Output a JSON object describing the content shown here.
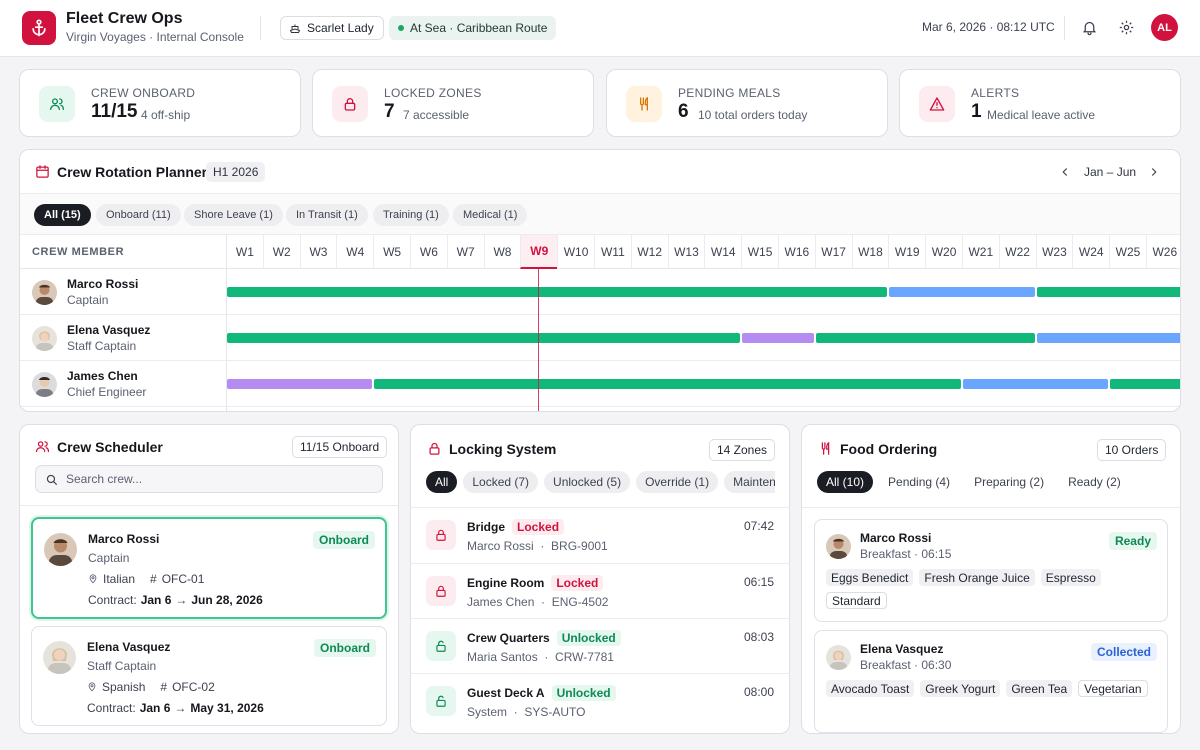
{
  "header": {
    "app_title": "Fleet Crew Ops",
    "app_subtitle": "Virgin Voyages · Internal Console",
    "ship": "Scarlet Lady",
    "status": "At Sea · Caribbean Route",
    "datetime": "Mar 6, 2026 · 08:12 UTC",
    "user_initials": "AL",
    "brand_color": "#d1123f"
  },
  "stats": [
    {
      "label": "Crew Onboard",
      "value": "11/15",
      "sub": "4 off-ship"
    },
    {
      "label": "Locked Zones",
      "value": "7",
      "sub": "7 accessible"
    },
    {
      "label": "Pending Meals",
      "value": "6",
      "sub": "10 total orders today"
    },
    {
      "label": "Alerts",
      "value": "1",
      "sub": "Medical leave active"
    }
  ],
  "planner": {
    "title": "Crew Rotation Planner",
    "period_badge": "H1 2026",
    "range": "Jan – Jun",
    "filters": [
      "All (15)",
      "Onboard (11)",
      "Shore Leave (1)",
      "In Transit (1)",
      "Training (1)",
      "Medical (1)"
    ],
    "column_header": "CREW MEMBER",
    "weeks": [
      "W1",
      "W2",
      "W3",
      "W4",
      "W5",
      "W6",
      "W7",
      "W8",
      "W9",
      "W10",
      "W11",
      "W12",
      "W13",
      "W14",
      "W15",
      "W16",
      "W17",
      "W18",
      "W19",
      "W20",
      "W21",
      "W22",
      "W23",
      "W24",
      "W25",
      "W26"
    ],
    "current_week": "W9",
    "rows": [
      {
        "name": "Marco Rossi",
        "role": "Captain",
        "segments": [
          {
            "type": "onboard",
            "start": 0,
            "end": 18
          },
          {
            "type": "shore",
            "start": 18,
            "end": 22
          },
          {
            "type": "onboard",
            "start": 22,
            "end": 26
          }
        ]
      },
      {
        "name": "Elena Vasquez",
        "role": "Staff Captain",
        "segments": [
          {
            "type": "onboard",
            "start": 0,
            "end": 14
          },
          {
            "type": "training",
            "start": 14,
            "end": 16
          },
          {
            "type": "onboard",
            "start": 16,
            "end": 22
          },
          {
            "type": "shore",
            "start": 22,
            "end": 26
          }
        ]
      },
      {
        "name": "James Chen",
        "role": "Chief Engineer",
        "segments": [
          {
            "type": "training",
            "start": 0,
            "end": 4
          },
          {
            "type": "onboard",
            "start": 4,
            "end": 20
          },
          {
            "type": "shore",
            "start": 20,
            "end": 24
          },
          {
            "type": "onboard",
            "start": 24,
            "end": 26
          }
        ]
      }
    ]
  },
  "scheduler": {
    "title": "Crew Scheduler",
    "badge": "11/15 Onboard",
    "search_placeholder": "Search crew...",
    "cards": [
      {
        "name": "Marco Rossi",
        "role": "Captain",
        "status": "Onboard",
        "language": "Italian",
        "office": "OFC-01",
        "contract_label": "Contract:",
        "contract_start": "Jan 6",
        "contract_end": "Jun 28, 2026"
      },
      {
        "name": "Elena Vasquez",
        "role": "Staff Captain",
        "status": "Onboard",
        "language": "Spanish",
        "office": "OFC-02",
        "contract_label": "Contract:",
        "contract_start": "Jan 6",
        "contract_end": "May 31, 2026"
      }
    ]
  },
  "locking": {
    "title": "Locking System",
    "badge": "14 Zones",
    "tabs": [
      "All",
      "Locked (7)",
      "Unlocked (5)",
      "Override (1)",
      "Maintenance"
    ],
    "zones": [
      {
        "name": "Bridge",
        "state": "Locked",
        "person": "Marco Rossi",
        "code": "BRG-9001",
        "time": "07:42"
      },
      {
        "name": "Engine Room",
        "state": "Locked",
        "person": "James Chen",
        "code": "ENG-4502",
        "time": "06:15"
      },
      {
        "name": "Crew Quarters",
        "state": "Unlocked",
        "person": "Maria Santos",
        "code": "CRW-7781",
        "time": "08:03"
      },
      {
        "name": "Guest Deck A",
        "state": "Unlocked",
        "person": "System",
        "code": "SYS-AUTO",
        "time": "08:00"
      }
    ]
  },
  "food": {
    "title": "Food Ordering",
    "badge": "10 Orders",
    "tabs": [
      "All (10)",
      "Pending (4)",
      "Preparing (2)",
      "Ready (2)"
    ],
    "orders": [
      {
        "name": "Marco Rossi",
        "meal": "Breakfast · 06:15",
        "status": "Ready",
        "items": [
          "Eggs Benedict",
          "Fresh Orange Juice",
          "Espresso"
        ],
        "diet": "Standard"
      },
      {
        "name": "Elena Vasquez",
        "meal": "Breakfast · 06:30",
        "status": "Collected",
        "items": [
          "Avocado Toast",
          "Greek Yogurt",
          "Green Tea"
        ],
        "diet": "Vegetarian"
      }
    ]
  }
}
